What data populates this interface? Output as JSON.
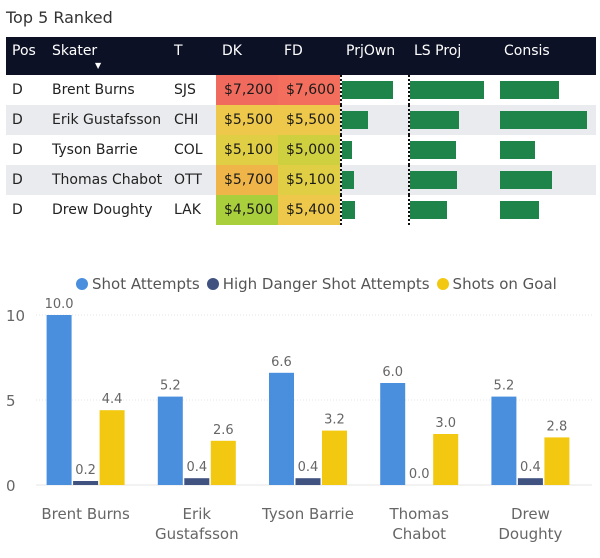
{
  "colors": {
    "header_bg": "#0d1126",
    "bar_green": "#1e8449",
    "series_blue": "#4a8fde",
    "series_navy": "#40527f",
    "series_yellow": "#f2c811"
  },
  "table": {
    "title": "Top 5 Ranked",
    "headers": [
      "Pos",
      "Skater",
      "T",
      "DK",
      "FD",
      "PrjOwn",
      "LS Proj",
      "Consis"
    ],
    "sort_indicator": "▼",
    "rows": [
      {
        "pos": "D",
        "skater": "Brent Burns",
        "team": "SJS",
        "dk": "$7,200",
        "fd": "$7,600",
        "dk_color": "#f06a5e",
        "fd_color": "#f36e5c",
        "prjown": 0.8,
        "lsproj": 0.86,
        "consis": 0.68
      },
      {
        "pos": "D",
        "skater": "Erik Gustafsson",
        "team": "CHI",
        "dk": "$5,500",
        "fd": "$5,500",
        "dk_color": "#eec84a",
        "fd_color": "#eec84a",
        "prjown": 0.4,
        "lsproj": 0.57,
        "consis": 1.0
      },
      {
        "pos": "D",
        "skater": "Tyson Barrie",
        "team": "COL",
        "dk": "$5,100",
        "fd": "$5,000",
        "dk_color": "#e0cf45",
        "fd_color": "#cfd040",
        "prjown": 0.16,
        "lsproj": 0.54,
        "consis": 0.4
      },
      {
        "pos": "D",
        "skater": "Thomas Chabot",
        "team": "OTT",
        "dk": "$5,700",
        "fd": "$5,100",
        "dk_color": "#f0b548",
        "fd_color": "#e0cf45",
        "prjown": 0.18,
        "lsproj": 0.55,
        "consis": 0.6
      },
      {
        "pos": "D",
        "skater": "Drew Doughty",
        "team": "LAK",
        "dk": "$4,500",
        "fd": "$5,400",
        "dk_color": "#a9cf3c",
        "fd_color": "#eec84a",
        "prjown": 0.2,
        "lsproj": 0.43,
        "consis": 0.45
      }
    ]
  },
  "chart_data": {
    "type": "bar",
    "categories": [
      "Brent Burns",
      "Erik Gustafsson",
      "Tyson Barrie",
      "Thomas Chabot",
      "Drew Doughty"
    ],
    "category_lines": [
      [
        "Brent Burns"
      ],
      [
        "Erik",
        "Gustafsson"
      ],
      [
        "Tyson Barrie"
      ],
      [
        "Thomas",
        "Chabot"
      ],
      [
        "Drew",
        "Doughty"
      ]
    ],
    "series": [
      {
        "name": "Shot Attempts",
        "color": "#4a8fde",
        "values": [
          10.0,
          5.2,
          6.6,
          6.0,
          5.2
        ]
      },
      {
        "name": "High Danger Shot Attempts",
        "color": "#40527f",
        "values": [
          0.2,
          0.4,
          0.4,
          0.0,
          0.4
        ]
      },
      {
        "name": "Shots on Goal",
        "color": "#f2c811",
        "values": [
          4.4,
          2.6,
          3.2,
          3.0,
          2.8
        ]
      }
    ],
    "yticks": [
      0,
      5,
      10
    ],
    "ylim": [
      0,
      10
    ],
    "legend_position": "top",
    "title": "",
    "xlabel": "",
    "ylabel": ""
  }
}
